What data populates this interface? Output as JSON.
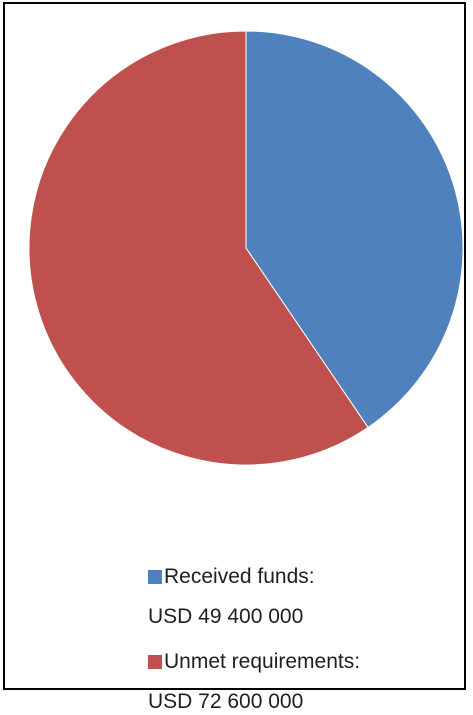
{
  "chart_data": {
    "type": "pie",
    "title": "",
    "slices": [
      {
        "label": "Received funds:",
        "value_label": "USD 49 400 000",
        "value": 49400000,
        "color": "#4f81bd"
      },
      {
        "label": "Unmet requirements:",
        "value_label": "USD 72 600 000",
        "value": 72600000,
        "color": "#c0504d"
      }
    ],
    "start_angle_deg": 0,
    "direction": "clockwise",
    "legend_position": "bottom"
  }
}
